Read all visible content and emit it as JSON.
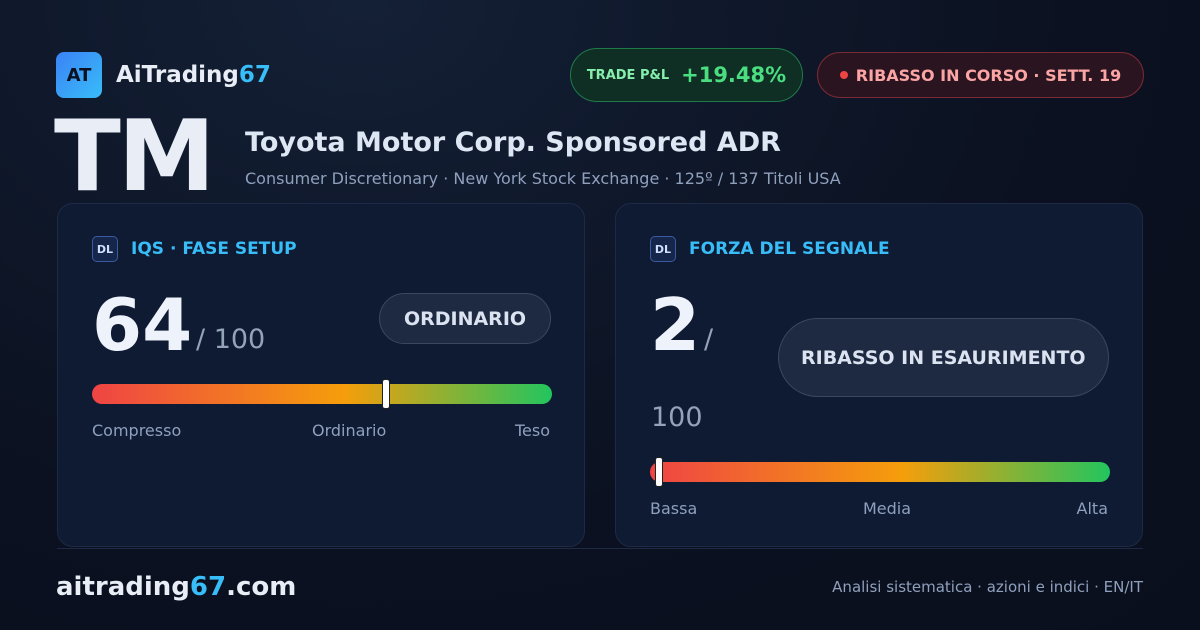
{
  "brand": {
    "badge": "AT",
    "name": "AiTrading",
    "name_accent": "67"
  },
  "pills": {
    "pnl_label": "TRADE P&L",
    "pnl_value": "+19.48%",
    "status": "RIBASSO IN CORSO · SETT. 19"
  },
  "header": {
    "ticker": "TM",
    "title": "Toyota Motor Corp. Sponsored ADR",
    "subtitle": "Consumer Discretionary · New York Stock Exchange · 125º / 137 Titoli USA"
  },
  "panels": [
    {
      "badge": "DL",
      "title": "IQS · FASE SETUP",
      "score": 64,
      "separator": "/",
      "max": 100,
      "label": "ORDINARIO",
      "scale": [
        "Compresso",
        "Ordinario",
        "Teso"
      ]
    },
    {
      "badge": "DL",
      "title": "FORZA DEL SEGNALE",
      "score": 2,
      "separator": "/",
      "max": 100,
      "label": "RIBASSO IN ESAURIMENTO",
      "scale": [
        "Bassa",
        "Media",
        "Alta"
      ]
    }
  ],
  "footer": {
    "site": "aitrading",
    "site_accent": "67",
    "site_tld": ".com",
    "tagline": "Analisi sistematica · azioni e indici · EN/IT"
  }
}
